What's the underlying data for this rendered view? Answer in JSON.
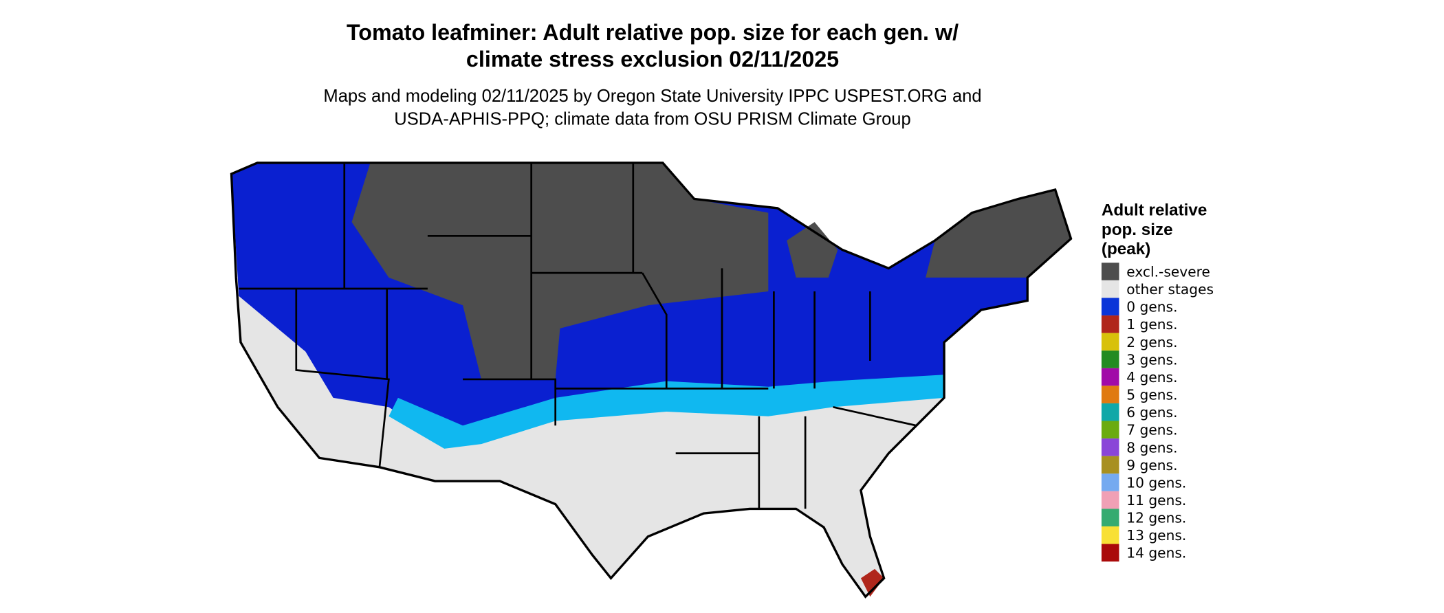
{
  "header": {
    "title": [
      "Tomato leafminer: Adult relative pop. size for each gen. w/",
      "climate stress exclusion 02/11/2025"
    ],
    "subtitle": [
      "Maps and modeling 02/11/2025 by Oregon State University IPPC USPEST.ORG and",
      "USDA-APHIS-PPQ; climate data from OSU PRISM Climate Group"
    ]
  },
  "legend": {
    "title": [
      "Adult relative",
      "pop. size",
      "(peak)"
    ],
    "items": [
      {
        "label": "excl.-severe",
        "color": "#4d4d4d"
      },
      {
        "label": "other stages",
        "color": "#e5e5e5"
      },
      {
        "label": "0 gens.",
        "color": "#0a35d8"
      },
      {
        "label": "1 gens.",
        "color": "#b0261b"
      },
      {
        "label": "2 gens.",
        "color": "#d8c10a"
      },
      {
        "label": "3 gens.",
        "color": "#228b22"
      },
      {
        "label": "4 gens.",
        "color": "#a10aa8"
      },
      {
        "label": "5 gens.",
        "color": "#e07a10"
      },
      {
        "label": "6 gens.",
        "color": "#10a8a8"
      },
      {
        "label": "7 gens.",
        "color": "#6bab10"
      },
      {
        "label": "8 gens.",
        "color": "#8a45d8"
      },
      {
        "label": "9 gens.",
        "color": "#a89020"
      },
      {
        "label": "10 gens.",
        "color": "#75aaf0"
      },
      {
        "label": "11 gens.",
        "color": "#f0a0b5"
      },
      {
        "label": "12 gens.",
        "color": "#35ab70"
      },
      {
        "label": "13 gens.",
        "color": "#f8e035"
      },
      {
        "label": "14 gens.",
        "color": "#aa0a0a"
      }
    ]
  }
}
